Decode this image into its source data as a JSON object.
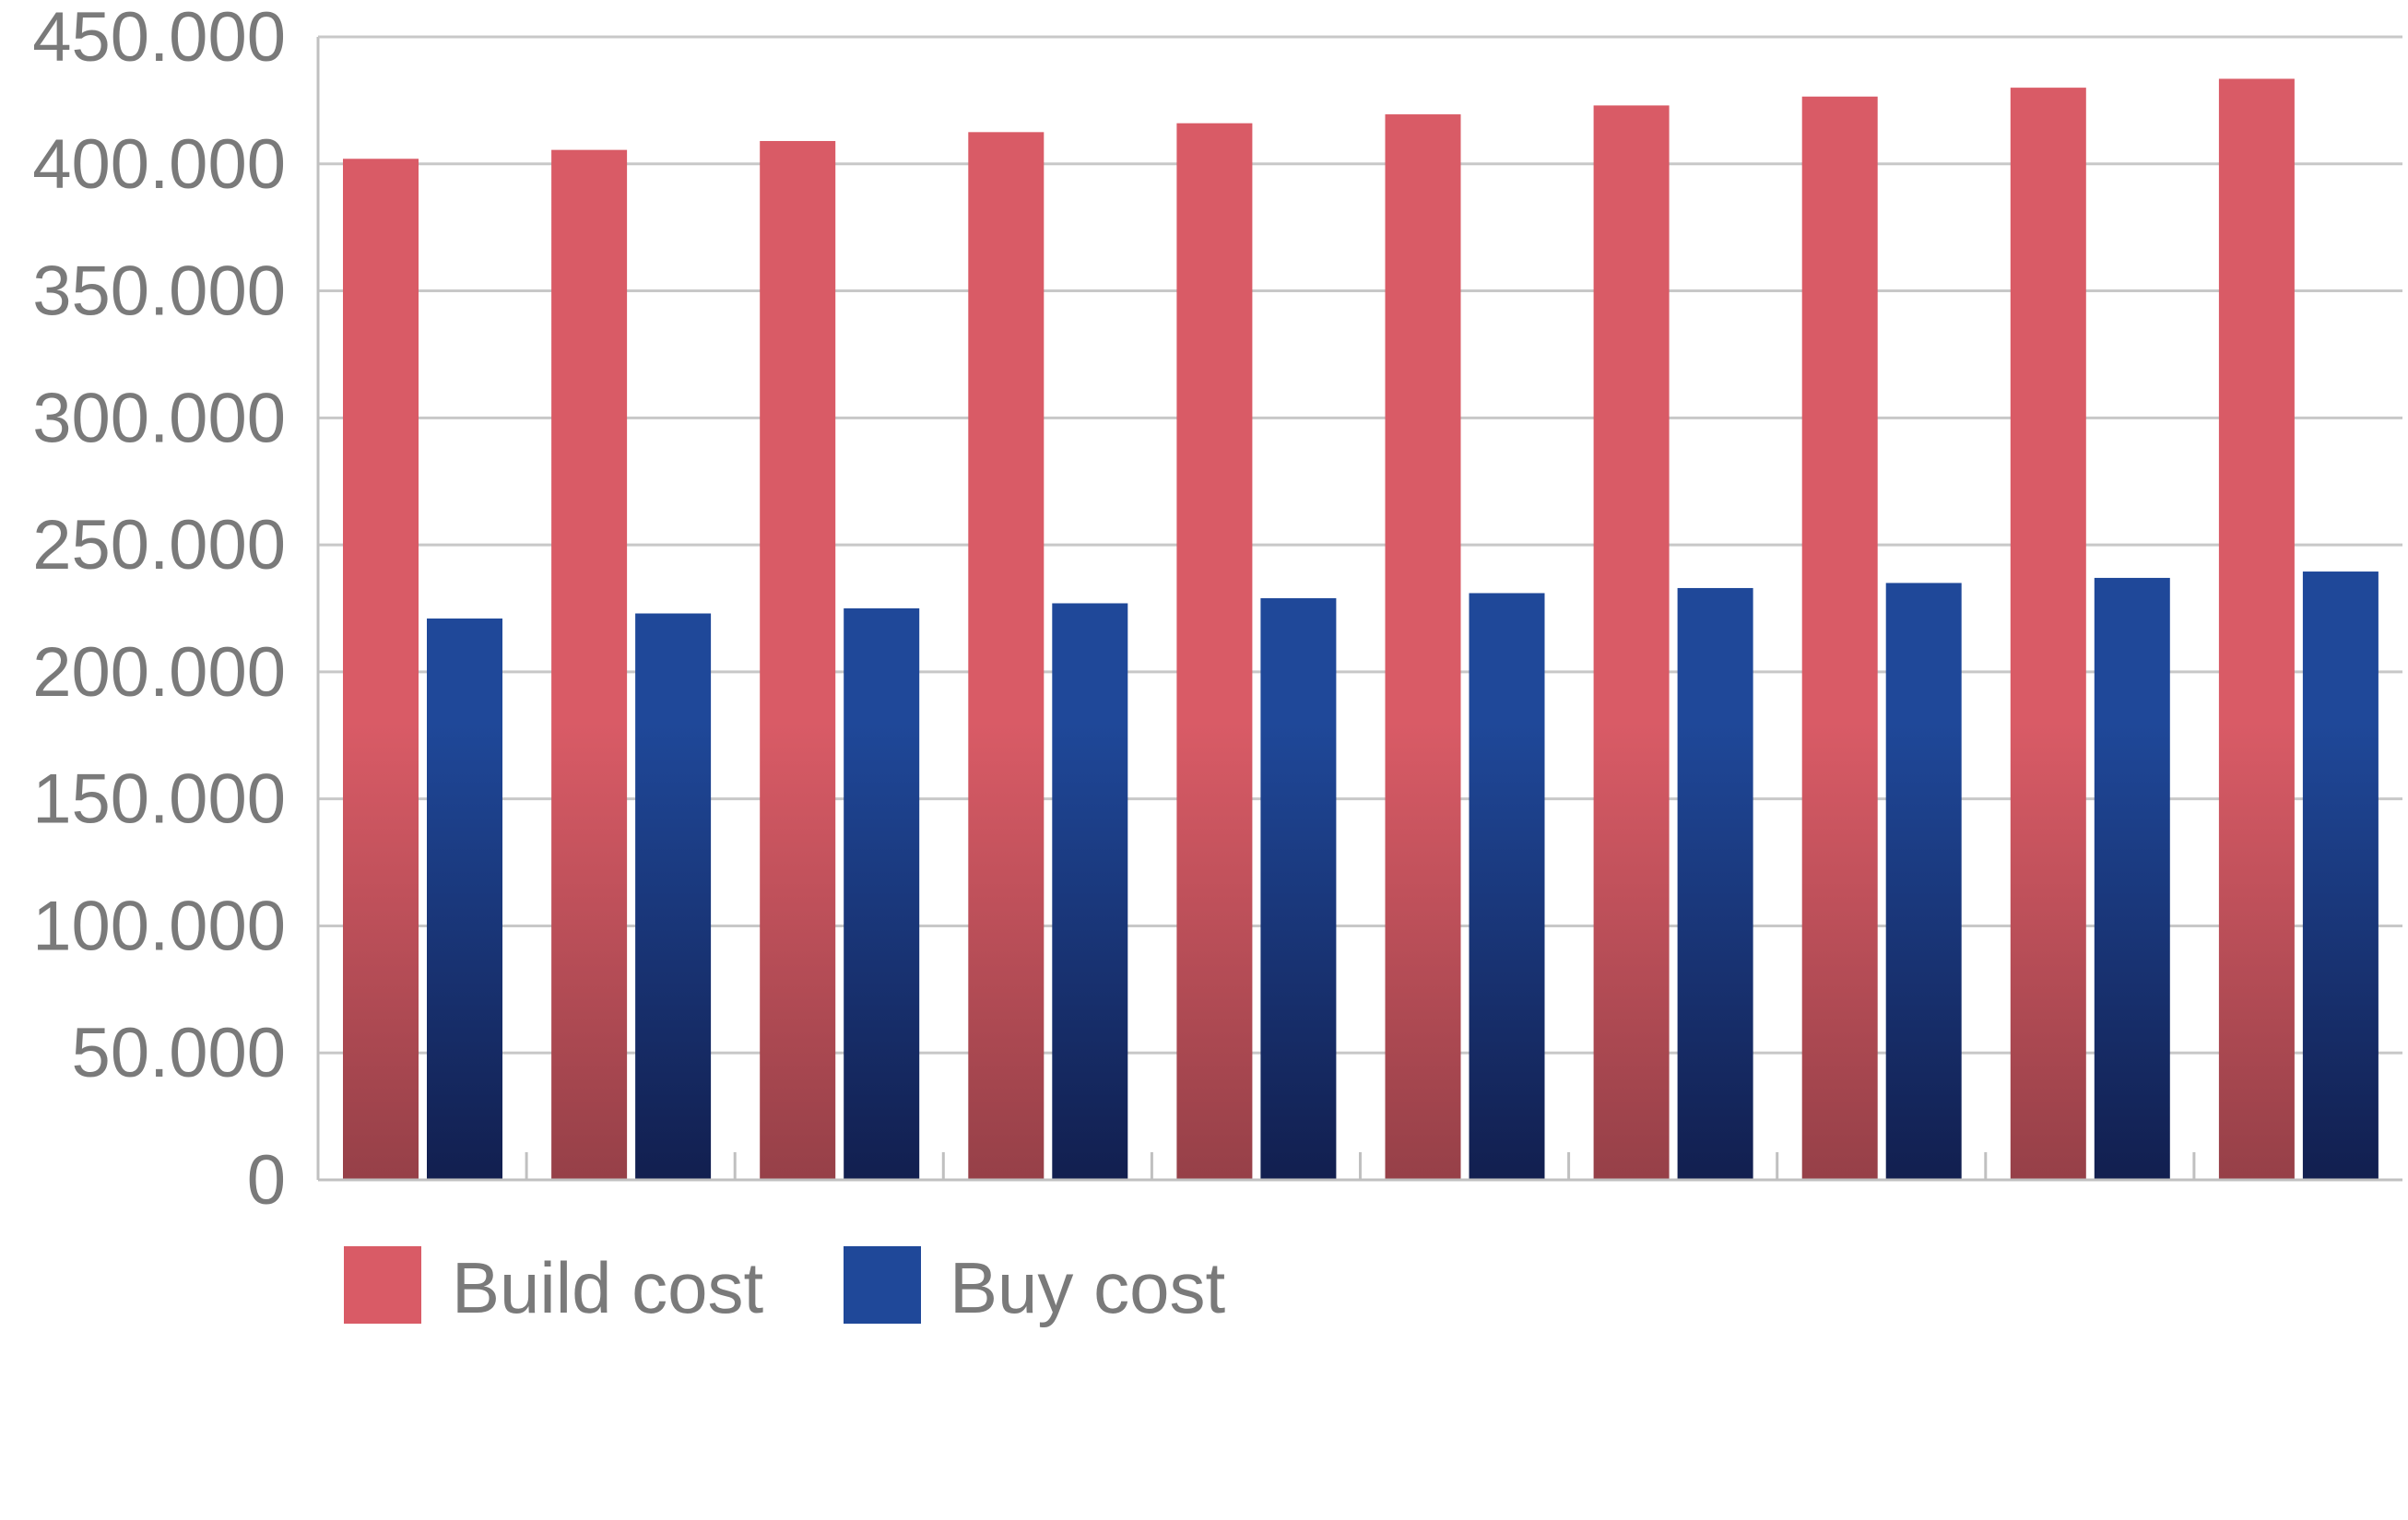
{
  "chart_data": {
    "type": "bar",
    "categories": [
      "",
      "",
      "",
      "",
      "",
      "",
      "",
      "",
      "",
      ""
    ],
    "series": [
      {
        "name": "Build cost",
        "color": "#d95b66",
        "color_dark": "#964048",
        "values": [
          402000,
          405500,
          409000,
          412500,
          416000,
          419500,
          423000,
          426500,
          430000,
          433500
        ]
      },
      {
        "name": "Buy cost",
        "color": "#1f4899",
        "color_dark": "#121f4f",
        "values": [
          221000,
          223000,
          225000,
          227000,
          229000,
          231000,
          233000,
          235000,
          237000,
          239500
        ]
      }
    ],
    "ylim": [
      0,
      450000
    ],
    "yticks": [
      0,
      50000,
      100000,
      150000,
      200000,
      250000,
      300000,
      350000,
      400000,
      450000
    ],
    "ytick_labels": [
      "0",
      "50.000",
      "100.000",
      "150.000",
      "200.000",
      "250.000",
      "300.000",
      "350.000",
      "400.000",
      "450.000"
    ],
    "title": "",
    "xlabel": "",
    "ylabel": "",
    "grid": true,
    "legend_placement": "bottom-left"
  }
}
